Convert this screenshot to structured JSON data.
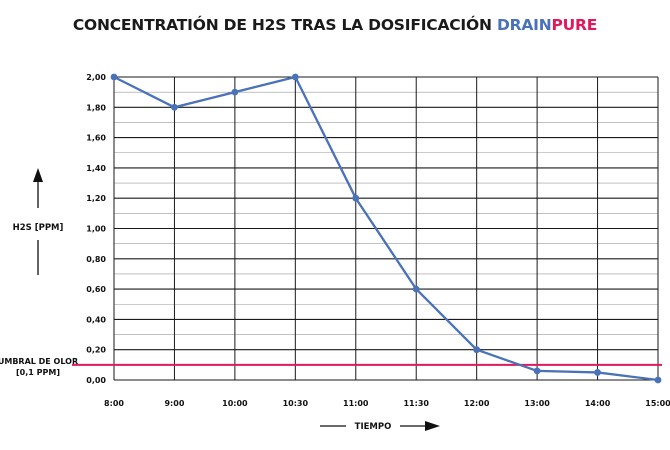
{
  "chart_data": {
    "type": "line",
    "title": {
      "main": "CONCENTRATIÓN DE H2S TRAS LA DOSIFICACIÓN ",
      "brand_part1": "DRAIN",
      "brand_part2": "PURE"
    },
    "xlabel": "TIEMPO",
    "ylabel": "H2S [PPM]",
    "categories": [
      "8:00",
      "9:00",
      "10:00",
      "10:30",
      "11:00",
      "11:30",
      "12:00",
      "13:00",
      "14:00",
      "15:00"
    ],
    "values": [
      2.0,
      1.8,
      1.9,
      2.0,
      1.2,
      0.6,
      0.2,
      0.06,
      0.05,
      0.0
    ],
    "ylim": [
      0,
      2.0
    ],
    "yticks": [
      "0,00",
      "0,20",
      "0,40",
      "0,60",
      "0,80",
      "1,00",
      "1,20",
      "1,40",
      "1,60",
      "1,80",
      "2,00"
    ],
    "grid": true,
    "threshold": {
      "value": 0.1,
      "label_line1": "UMBRAL DE OLOR",
      "label_line2": "[0,1 PPM]"
    },
    "colors": {
      "line": "#4a72b8",
      "threshold": "#e0195a",
      "brand_blue": "#4a72b8",
      "brand_pink": "#e0195a",
      "grid": "#1a1a1a"
    }
  }
}
